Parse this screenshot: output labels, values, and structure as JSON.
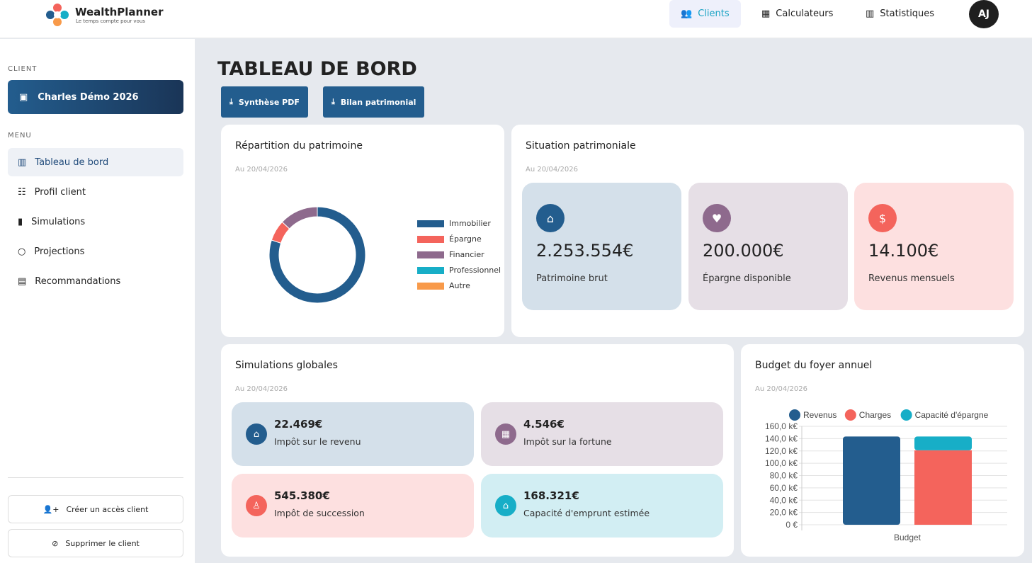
{
  "brand": {
    "name": "WealthPlanner",
    "tagline": "Le temps compte pour vous"
  },
  "nav": [
    {
      "label": "Clients",
      "icon": "users-icon",
      "active": true
    },
    {
      "label": "Calculateurs",
      "icon": "calculator-icon"
    },
    {
      "label": "Statistiques",
      "icon": "chart-icon"
    }
  ],
  "user": {
    "initials": "AJ"
  },
  "sidebar": {
    "client_label": "CLIENT",
    "client_name": "Charles Démo 2026",
    "menu_label": "MENU",
    "items": [
      {
        "label": "Tableau de bord",
        "active": true
      },
      {
        "label": "Profil client"
      },
      {
        "label": "Simulations"
      },
      {
        "label": "Projections"
      },
      {
        "label": "Recommandations"
      }
    ],
    "create_access": "Créer un accès client",
    "delete_client": "Supprimer le client"
  },
  "page": {
    "title": "TABLEAU DE BORD",
    "btn_pdf": "Synthèse PDF",
    "btn_bilan": "Bilan patrimonial"
  },
  "repartition": {
    "title": "Répartition du patrimoine",
    "date": "Au 20/04/2026"
  },
  "situation": {
    "title": "Situation patrimoniale",
    "date": "Au 20/04/2026",
    "cards": [
      {
        "value": "2.253.554€",
        "label": "Patrimoine brut"
      },
      {
        "value": "200.000€",
        "label": "Épargne disponible"
      },
      {
        "value": "14.100€",
        "label": "Revenus mensuels"
      }
    ]
  },
  "simulations": {
    "title": "Simulations globales",
    "date": "Au 20/04/2026",
    "cards": [
      {
        "value": "22.469€",
        "label": "Impôt sur le revenu"
      },
      {
        "value": "4.546€",
        "label": "Impôt sur la fortune"
      },
      {
        "value": "545.380€",
        "label": "Impôt de succession"
      },
      {
        "value": "168.321€",
        "label": "Capacité d'emprunt estimée"
      }
    ]
  },
  "budget": {
    "title": "Budget du foyer annuel",
    "date": "Au 20/04/2026"
  },
  "chart_data": [
    {
      "type": "pie",
      "title": "Répartition du patrimoine",
      "categories": [
        "Immobilier",
        "Épargne",
        "Financier",
        "Professionnel",
        "Autre"
      ],
      "values": [
        80,
        7,
        13,
        0,
        0
      ],
      "colors": [
        "#235d8e",
        "#f4645c",
        "#8e6a8d",
        "#17aec7",
        "#f89a4a"
      ],
      "legend": "right"
    },
    {
      "type": "bar",
      "title": "Budget du foyer annuel",
      "categories": [
        "Budget"
      ],
      "series": [
        {
          "name": "Revenus",
          "values": [
            143.5
          ],
          "color": "#235d8e"
        },
        {
          "name": "Charges",
          "values": [
            121
          ],
          "color": "#f4645c"
        },
        {
          "name": "Capacité d'épargne",
          "values": [
            22.5
          ],
          "color": "#17aec7"
        }
      ],
      "ylim": [
        0,
        160
      ],
      "yticks": [
        "0 €",
        "20,0 k€",
        "40,0 k€",
        "60,0 k€",
        "80,0 k€",
        "100,0 k€",
        "120,0 k€",
        "140,0 k€",
        "160,0 k€"
      ],
      "xlabel": "Budget",
      "legend": "top",
      "grid": true
    }
  ]
}
